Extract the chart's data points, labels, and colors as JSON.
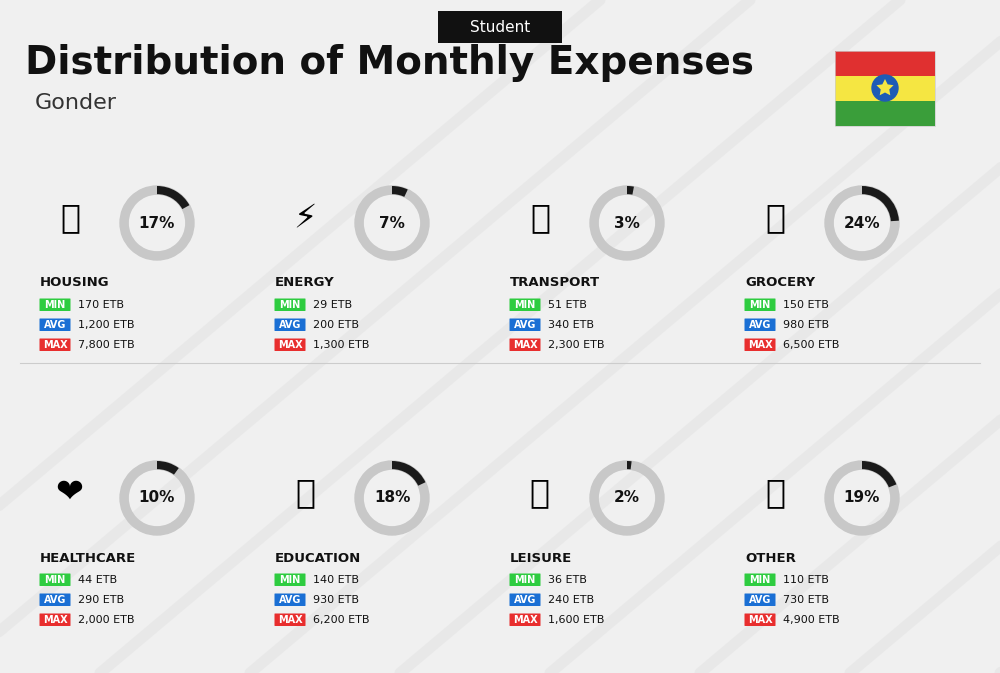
{
  "title": "Distribution of Monthly Expenses",
  "subtitle": "Gonder",
  "label_top": "Student",
  "background_color": "#f0f0f0",
  "categories": [
    {
      "name": "HOUSING",
      "percent": 17,
      "min_val": "170 ETB",
      "avg_val": "1,200 ETB",
      "max_val": "7,800 ETB",
      "icon_emoji": "🏢",
      "row": 0,
      "col": 0
    },
    {
      "name": "ENERGY",
      "percent": 7,
      "min_val": "29 ETB",
      "avg_val": "200 ETB",
      "max_val": "1,300 ETB",
      "icon_emoji": "⚡",
      "row": 0,
      "col": 1
    },
    {
      "name": "TRANSPORT",
      "percent": 3,
      "min_val": "51 ETB",
      "avg_val": "340 ETB",
      "max_val": "2,300 ETB",
      "icon_emoji": "🚌",
      "row": 0,
      "col": 2
    },
    {
      "name": "GROCERY",
      "percent": 24,
      "min_val": "150 ETB",
      "avg_val": "980 ETB",
      "max_val": "6,500 ETB",
      "icon_emoji": "🛒",
      "row": 0,
      "col": 3
    },
    {
      "name": "HEALTHCARE",
      "percent": 10,
      "min_val": "44 ETB",
      "avg_val": "290 ETB",
      "max_val": "2,000 ETB",
      "icon_emoji": "❤️",
      "row": 1,
      "col": 0
    },
    {
      "name": "EDUCATION",
      "percent": 18,
      "min_val": "140 ETB",
      "avg_val": "930 ETB",
      "max_val": "6,200 ETB",
      "icon_emoji": "🎓",
      "row": 1,
      "col": 1
    },
    {
      "name": "LEISURE",
      "percent": 2,
      "min_val": "36 ETB",
      "avg_val": "240 ETB",
      "max_val": "1,600 ETB",
      "icon_emoji": "🛍️",
      "row": 1,
      "col": 2
    },
    {
      "name": "OTHER",
      "percent": 19,
      "min_val": "110 ETB",
      "avg_val": "730 ETB",
      "max_val": "4,900 ETB",
      "icon_emoji": "💰",
      "row": 1,
      "col": 3
    }
  ],
  "color_min": "#2ecc40",
  "color_avg": "#1a6fd4",
  "color_max": "#e82e2e",
  "color_arc": "#1a1a1a",
  "color_arc_bg": "#c8c8c8",
  "text_color": "#111111",
  "flag_colors": [
    "#3a9e3a",
    "#f5e642",
    "#e03030"
  ],
  "title_fontsize": 28,
  "subtitle_fontsize": 16,
  "label_fontsize": 12
}
